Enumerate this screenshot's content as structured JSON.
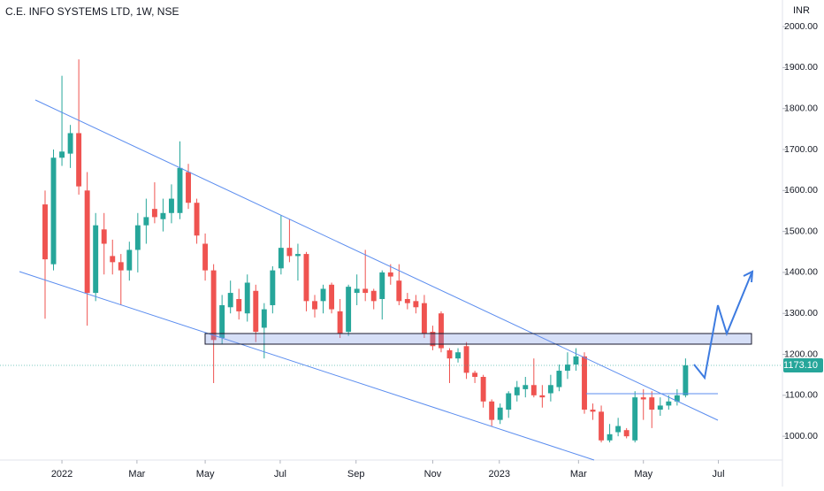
{
  "chart_data": {
    "type": "candlestick",
    "title": "C.E. INFO SYSTEMS LTD, 1W, NSE",
    "currency": "INR",
    "last_label": "1173.10",
    "up_color": "#26a69a",
    "down_color": "#ef5350",
    "open": [
      1566,
      1420,
      1680,
      1690,
      1740,
      1600,
      1350,
      1505,
      1440,
      1425,
      1405,
      1455,
      1515,
      1555,
      1530,
      1545,
      1545,
      1645,
      1570,
      1470,
      1405,
      1240,
      1315,
      1335,
      1300,
      1355,
      1265,
      1320,
      1410,
      1460,
      1440,
      1445,
      1330,
      1330,
      1370,
      1305,
      1255,
      1350,
      1360,
      1355,
      1335,
      1400,
      1380,
      1335,
      1330,
      1325,
      1255,
      1300,
      1210,
      1190,
      1220,
      1155,
      1145,
      1085,
      1040,
      1065,
      1100,
      1115,
      1125,
      1100,
      1105,
      1120,
      1160,
      1175,
      1195,
      1065,
      1060,
      990,
      1010,
      1015,
      990,
      1095,
      1095,
      1065,
      1075,
      1085,
      1100
    ],
    "high": [
      1600,
      1700,
      1880,
      1760,
      1920,
      1645,
      1545,
      1545,
      1480,
      1445,
      1475,
      1545,
      1580,
      1620,
      1580,
      1615,
      1720,
      1665,
      1580,
      1495,
      1420,
      1345,
      1380,
      1360,
      1395,
      1370,
      1325,
      1415,
      1540,
      1530,
      1470,
      1450,
      1345,
      1370,
      1375,
      1335,
      1370,
      1395,
      1455,
      1360,
      1405,
      1420,
      1420,
      1350,
      1345,
      1345,
      1270,
      1305,
      1215,
      1215,
      1230,
      1160,
      1150,
      1090,
      1080,
      1110,
      1135,
      1145,
      1190,
      1125,
      1150,
      1175,
      1205,
      1215,
      1205,
      1080,
      1075,
      1030,
      1045,
      1020,
      1110,
      1115,
      1110,
      1095,
      1100,
      1115,
      1190
    ],
    "low": [
      1287,
      1405,
      1660,
      1655,
      1590,
      1270,
      1330,
      1395,
      1395,
      1320,
      1380,
      1400,
      1470,
      1520,
      1500,
      1520,
      1530,
      1555,
      1470,
      1380,
      1130,
      1225,
      1300,
      1285,
      1280,
      1230,
      1190,
      1300,
      1395,
      1425,
      1380,
      1305,
      1290,
      1300,
      1300,
      1240,
      1245,
      1320,
      1330,
      1310,
      1285,
      1370,
      1320,
      1310,
      1300,
      1240,
      1210,
      1205,
      1130,
      1180,
      1140,
      1130,
      1070,
      1025,
      1030,
      1045,
      1085,
      1095,
      1095,
      1070,
      1085,
      1110,
      1140,
      1160,
      1055,
      1040,
      985,
      985,
      1000,
      995,
      985,
      1040,
      1020,
      1050,
      1065,
      1075,
      1095
    ],
    "close": [
      1432,
      1680,
      1695,
      1740,
      1610,
      1350,
      1515,
      1470,
      1425,
      1405,
      1455,
      1515,
      1535,
      1535,
      1545,
      1580,
      1655,
      1570,
      1490,
      1405,
      1235,
      1320,
      1350,
      1305,
      1375,
      1255,
      1310,
      1405,
      1460,
      1440,
      1445,
      1330,
      1310,
      1360,
      1310,
      1250,
      1365,
      1360,
      1350,
      1330,
      1400,
      1390,
      1330,
      1325,
      1315,
      1250,
      1220,
      1215,
      1190,
      1205,
      1155,
      1145,
      1085,
      1040,
      1070,
      1105,
      1120,
      1125,
      1100,
      1095,
      1125,
      1160,
      1175,
      1195,
      1065,
      1060,
      990,
      1005,
      1025,
      1000,
      1095,
      1090,
      1065,
      1075,
      1085,
      1100,
      1173.1
    ],
    "xlim": [
      -5.35,
      87.5
    ],
    "xticks": [
      {
        "value": 2,
        "label": "2022"
      },
      {
        "value": 10.9,
        "label": "Mar"
      },
      {
        "value": 19,
        "label": "May"
      },
      {
        "value": 27.9,
        "label": "Jul"
      },
      {
        "value": 36.9,
        "label": "Sep"
      },
      {
        "value": 46,
        "label": "Nov"
      },
      {
        "value": 53.9,
        "label": "2023"
      },
      {
        "value": 63.3,
        "label": "Mar"
      },
      {
        "value": 71,
        "label": "May"
      },
      {
        "value": 79.9,
        "label": "Jul"
      }
    ],
    "ylim": [
      942,
      2065
    ],
    "yticks": [
      {
        "value": 1000,
        "label": "1000.00"
      },
      {
        "value": 1100,
        "label": "1100.00"
      },
      {
        "value": 1200,
        "label": "1200.00"
      },
      {
        "value": 1300,
        "label": "1300.00"
      },
      {
        "value": 1400,
        "label": "1400.00"
      },
      {
        "value": 1500,
        "label": "1500.00"
      },
      {
        "value": 1600,
        "label": "1600.00"
      },
      {
        "value": 1700,
        "label": "1700.00"
      },
      {
        "value": 1800,
        "label": "1800.00"
      },
      {
        "value": 1900,
        "label": "1900.00"
      },
      {
        "value": 2000,
        "label": "2000.00"
      }
    ]
  }
}
